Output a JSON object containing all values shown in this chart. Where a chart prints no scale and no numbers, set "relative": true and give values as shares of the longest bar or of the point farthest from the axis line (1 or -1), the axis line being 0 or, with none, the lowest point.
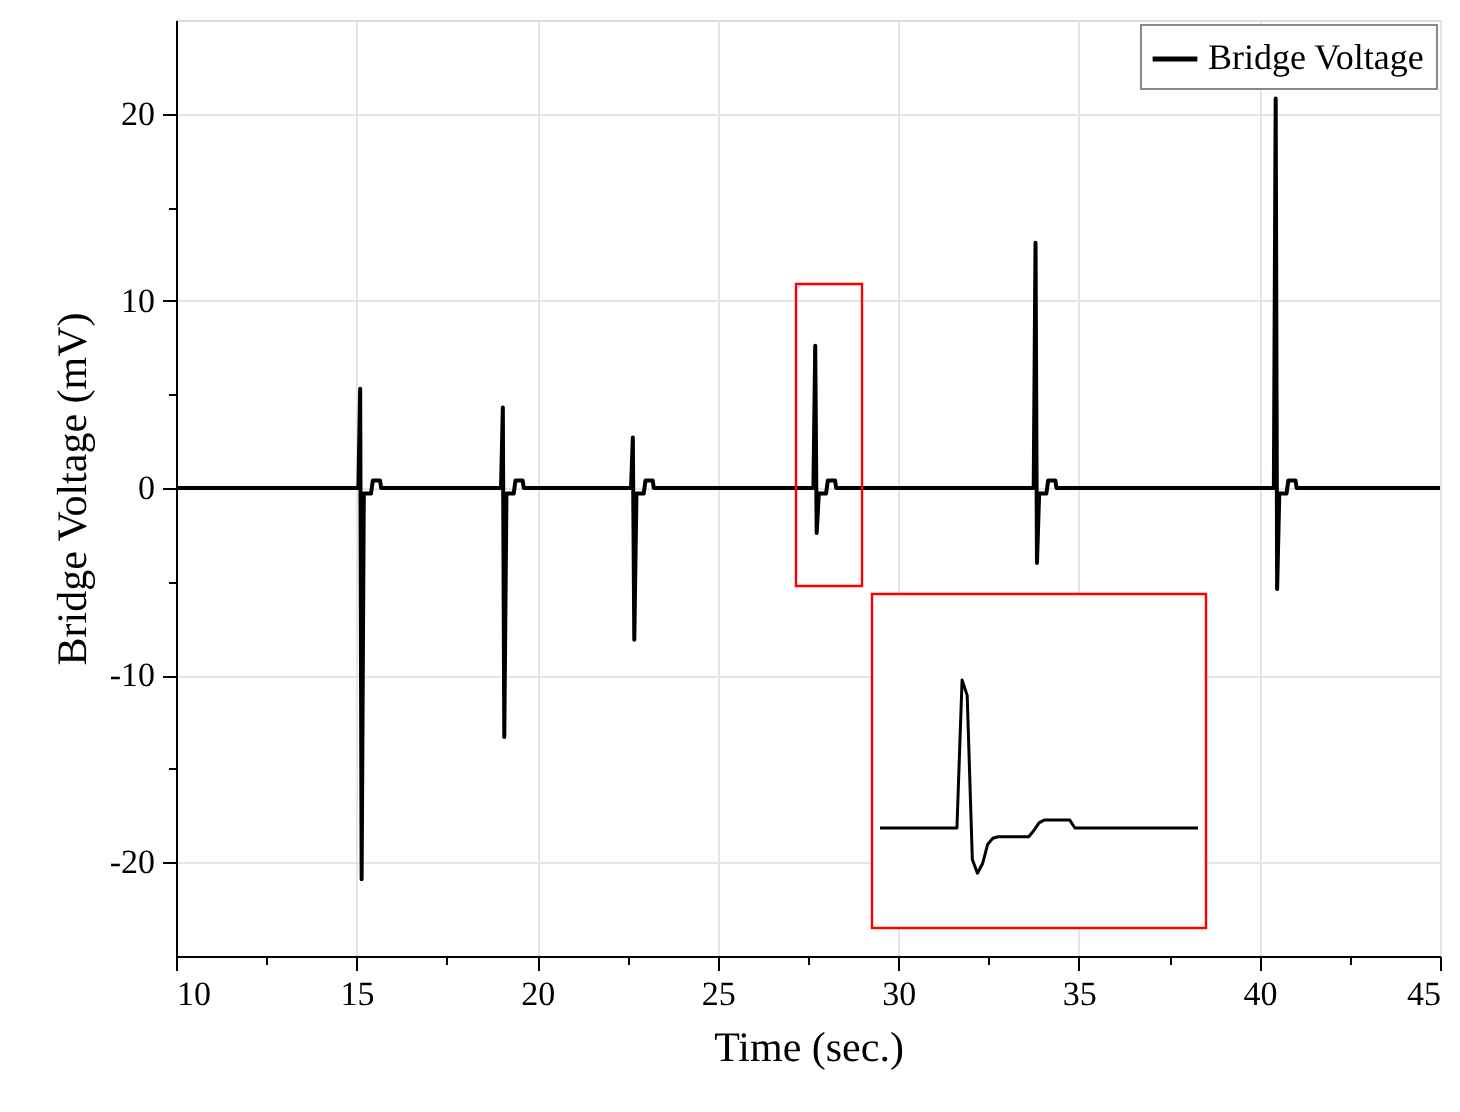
{
  "chart_data": [
    {
      "type": "line",
      "xlabel": "Time (sec.)",
      "ylabel": "Bridge Voltage (mV)",
      "xlim": [
        10,
        45
      ],
      "ylim": [
        -25,
        25
      ],
      "xticks": [
        10,
        {
          "value": 12.5,
          "label": null
        },
        15,
        {
          "value": 17.5,
          "label": null
        },
        20,
        {
          "value": 22.5,
          "label": null
        },
        25,
        {
          "value": 27.5,
          "label": null
        },
        30,
        {
          "value": 32.5,
          "label": null
        },
        35,
        {
          "value": 37.5,
          "label": null
        },
        40,
        {
          "value": 42.5,
          "label": null
        },
        45
      ],
      "yticks": [
        -20,
        {
          "value": -15,
          "label": null
        },
        -10,
        {
          "value": -5,
          "label": null
        },
        0,
        {
          "value": 5,
          "label": null
        },
        10,
        {
          "value": 15,
          "label": null
        },
        20
      ],
      "grid": true,
      "legend": "top right",
      "line_style": "solid",
      "series": [
        {
          "name": "Bridge Voltage",
          "color": "#000000",
          "x": [
            10,
            15.05,
            15.1,
            15.14,
            15.2,
            15.4,
            15.45,
            15.65,
            15.68,
            19.0,
            19.05,
            19.09,
            19.15,
            19.35,
            19.4,
            19.6,
            19.63,
            22.6,
            22.65,
            22.69,
            22.75,
            22.95,
            23.0,
            23.2,
            23.23,
            27.65,
            27.7,
            27.74,
            27.8,
            28.0,
            28.05,
            28.25,
            28.28,
            33.75,
            33.8,
            33.84,
            33.9,
            34.1,
            34.15,
            34.35,
            34.38,
            40.4,
            40.45,
            40.49,
            40.55,
            40.75,
            40.8,
            41.0,
            41.03,
            45
          ],
          "values": [
            0,
            0,
            5.3,
            -20.9,
            -0.3,
            -0.3,
            0.4,
            0.4,
            0,
            0,
            4.3,
            -13.3,
            -0.3,
            -0.3,
            0.4,
            0.4,
            0,
            0,
            2.7,
            -8.1,
            -0.3,
            -0.3,
            0.4,
            0.4,
            0,
            0,
            7.6,
            -2.4,
            -0.3,
            -0.3,
            0.4,
            0.4,
            0,
            0,
            13.1,
            -4.0,
            -0.3,
            -0.3,
            0.4,
            0.4,
            0,
            0,
            20.8,
            -5.4,
            -0.3,
            -0.3,
            0.4,
            0.4,
            0,
            0
          ]
        }
      ]
    },
    {
      "type": "line",
      "relative": true,
      "categories": [
        null,
        null,
        null,
        null,
        null,
        null,
        null,
        null,
        null,
        null,
        null,
        null,
        null,
        null,
        null,
        null,
        null,
        null,
        null,
        null,
        null,
        null,
        null,
        null,
        null,
        null,
        null,
        null,
        null,
        null,
        null,
        null,
        null,
        null,
        null,
        null,
        null,
        null,
        null,
        null,
        null,
        null,
        null,
        null,
        null,
        null,
        null,
        null,
        null,
        null,
        null,
        null,
        null,
        null,
        null,
        null,
        null,
        null,
        null,
        null,
        null,
        null,
        null
      ],
      "series": [
        {
          "color": "#000000",
          "values": [
            0.403,
            0.403,
            0.403,
            0.403,
            0.403,
            0.403,
            0.403,
            0.403,
            0.403,
            0.403,
            0.403,
            0.403,
            0.403,
            0.403,
            0.403,
            0.403,
            1,
            0.938,
            0.276,
            0.221,
            0.26,
            0.338,
            0.362,
            0.368,
            0.368,
            0.368,
            0.368,
            0.368,
            0.368,
            0.368,
            0.393,
            0.424,
            0.435,
            0.435,
            0.435,
            0.435,
            0.435,
            0.435,
            0.403,
            0.403,
            0.403,
            0.403,
            0.403,
            0.403,
            0.403,
            0.403,
            0.403,
            0.403,
            0.403,
            0.403,
            0.403,
            0.403,
            0.403,
            0.403,
            0.403,
            0.403,
            0.403,
            0.403,
            0.403,
            0.403,
            0.403,
            0.403,
            0.403
          ]
        }
      ]
    }
  ]
}
